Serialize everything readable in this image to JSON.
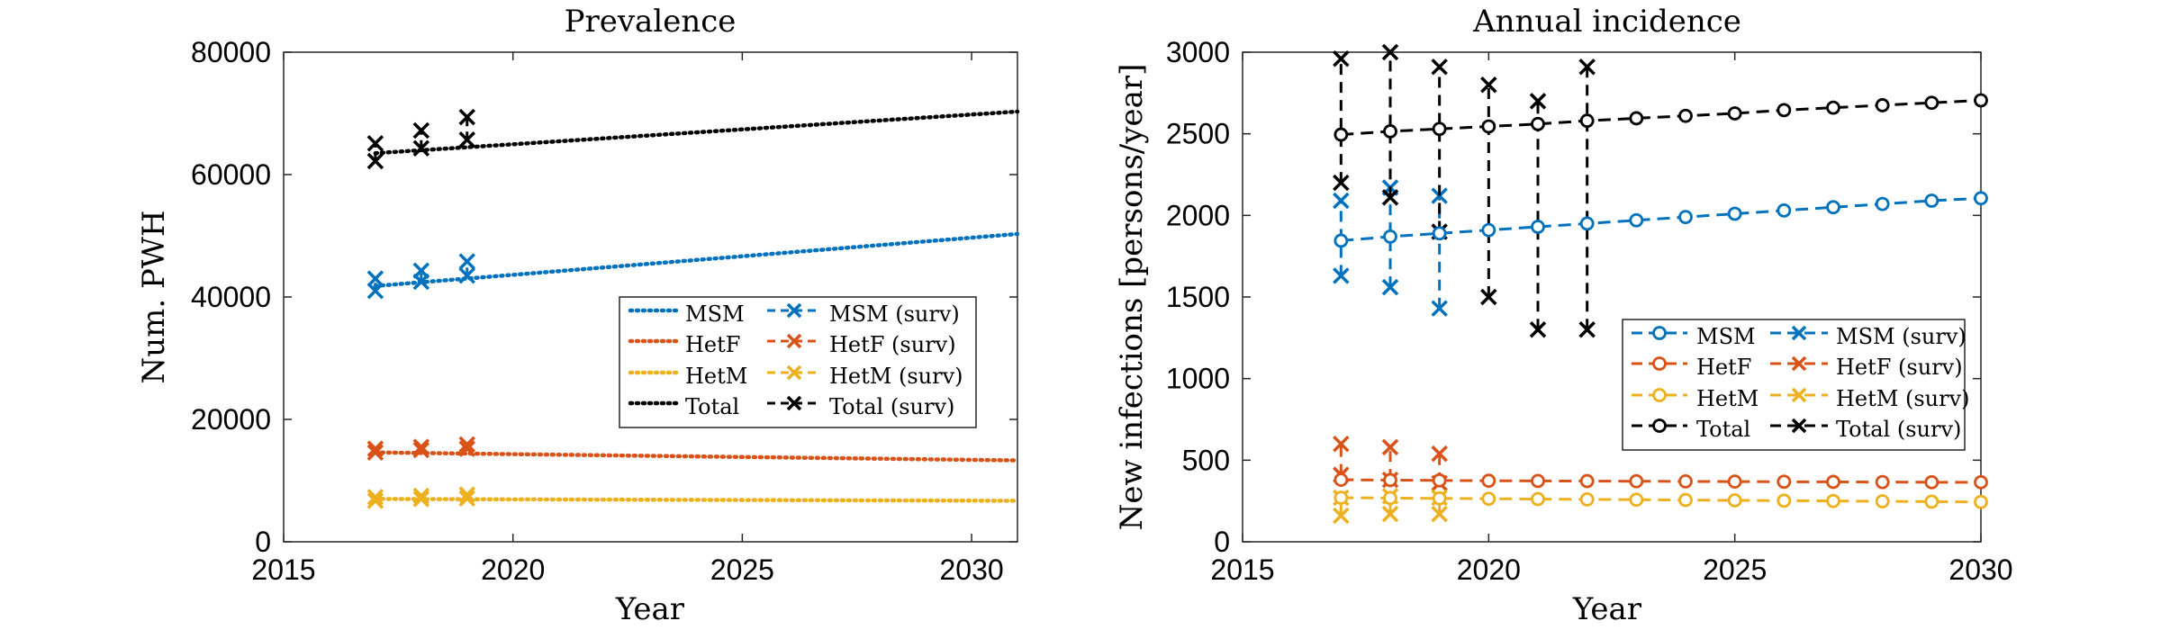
{
  "colors": {
    "MSM": "#0072BD",
    "HetF": "#D95319",
    "HetM": "#EDB120",
    "Total": "#000000"
  },
  "chart_data": [
    {
      "type": "line",
      "title": "Prevalence",
      "xlabel": "Year",
      "ylabel": "Num. PWH",
      "xlim": [
        2015,
        2031
      ],
      "ylim": [
        0,
        80000
      ],
      "xticks": [
        2015,
        2020,
        2025,
        2030
      ],
      "yticks": [
        0,
        20000,
        40000,
        60000,
        80000
      ],
      "legend": {
        "position": "right-middle",
        "entries": [
          "MSM",
          "HetF",
          "HetM",
          "Total",
          "MSM (surv)",
          "HetF (surv)",
          "HetM (surv)",
          "Total (surv)"
        ]
      },
      "model": [
        {
          "name": "MSM",
          "x": [
            2017,
            2031
          ],
          "y": [
            41800,
            50300
          ]
        },
        {
          "name": "HetF",
          "x": [
            2017,
            2031
          ],
          "y": [
            14600,
            13300
          ]
        },
        {
          "name": "HetM",
          "x": [
            2017,
            2031
          ],
          "y": [
            7000,
            6700
          ]
        },
        {
          "name": "Total",
          "x": [
            2017,
            2031
          ],
          "y": [
            63500,
            70300
          ]
        }
      ],
      "surveillance": [
        {
          "name": "MSM (surv)",
          "points": [
            [
              2017,
              41000
            ],
            [
              2017,
              43000
            ],
            [
              2018,
              42500
            ],
            [
              2018,
              44300
            ],
            [
              2019,
              43500
            ],
            [
              2019,
              45800
            ]
          ]
        },
        {
          "name": "HetF (surv)",
          "points": [
            [
              2017,
              14600
            ],
            [
              2017,
              15200
            ],
            [
              2018,
              15000
            ],
            [
              2018,
              15500
            ],
            [
              2019,
              15200
            ],
            [
              2019,
              15900
            ]
          ]
        },
        {
          "name": "HetM (surv)",
          "points": [
            [
              2017,
              6700
            ],
            [
              2017,
              7300
            ],
            [
              2018,
              7000
            ],
            [
              2018,
              7500
            ],
            [
              2019,
              7100
            ],
            [
              2019,
              7700
            ]
          ]
        },
        {
          "name": "Total (surv)",
          "points": [
            [
              2017,
              62200
            ],
            [
              2017,
              65100
            ],
            [
              2018,
              64300
            ],
            [
              2018,
              67200
            ],
            [
              2019,
              65700
            ],
            [
              2019,
              69400
            ]
          ]
        }
      ]
    },
    {
      "type": "line",
      "title": "Annual incidence",
      "xlabel": "Year",
      "ylabel": "New infections [persons/year]",
      "xlim": [
        2015,
        2030
      ],
      "ylim": [
        0,
        3000
      ],
      "xticks": [
        2015,
        2020,
        2025,
        2030
      ],
      "yticks": [
        0,
        500,
        1000,
        1500,
        2000,
        2500,
        3000
      ],
      "legend": {
        "position": "right-middle",
        "entries": [
          "MSM",
          "HetF",
          "HetM",
          "Total",
          "MSM (surv)",
          "HetF (surv)",
          "HetM (surv)",
          "Total (surv)"
        ]
      },
      "x": [
        2017,
        2018,
        2019,
        2020,
        2021,
        2022,
        2023,
        2024,
        2025,
        2026,
        2027,
        2028,
        2029,
        2030
      ],
      "series": [
        {
          "name": "MSM",
          "values": [
            1845,
            1870,
            1890,
            1910,
            1930,
            1950,
            1970,
            1990,
            2010,
            2030,
            2050,
            2070,
            2090,
            2105
          ]
        },
        {
          "name": "HetF",
          "values": [
            380,
            378,
            376,
            374,
            373,
            372,
            371,
            370,
            369,
            368,
            367,
            366,
            365,
            365
          ]
        },
        {
          "name": "HetM",
          "values": [
            270,
            268,
            266,
            264,
            262,
            260,
            258,
            256,
            254,
            252,
            250,
            248,
            246,
            244
          ]
        },
        {
          "name": "Total",
          "values": [
            2495,
            2515,
            2530,
            2545,
            2560,
            2580,
            2595,
            2610,
            2625,
            2645,
            2660,
            2675,
            2690,
            2705
          ]
        }
      ],
      "surveillance": [
        {
          "name": "MSM (surv)",
          "pairs": [
            [
              2017,
              1630,
              2090
            ],
            [
              2018,
              1560,
              2170
            ],
            [
              2019,
              1430,
              2120
            ]
          ]
        },
        {
          "name": "HetF (surv)",
          "pairs": [
            [
              2017,
              410,
              600
            ],
            [
              2018,
              380,
              580
            ],
            [
              2019,
              360,
              540
            ]
          ]
        },
        {
          "name": "HetM (surv)",
          "pairs": [
            [
              2017,
              160,
              270
            ],
            [
              2018,
              170,
              280
            ],
            [
              2019,
              170,
              270
            ]
          ]
        },
        {
          "name": "Total (surv)",
          "pairs": [
            [
              2017,
              2200,
              2960
            ],
            [
              2018,
              2110,
              3000
            ],
            [
              2019,
              1900,
              2910
            ],
            [
              2020,
              1500,
              2800
            ],
            [
              2021,
              1300,
              2700
            ],
            [
              2022,
              1300,
              2910
            ]
          ]
        }
      ]
    }
  ]
}
